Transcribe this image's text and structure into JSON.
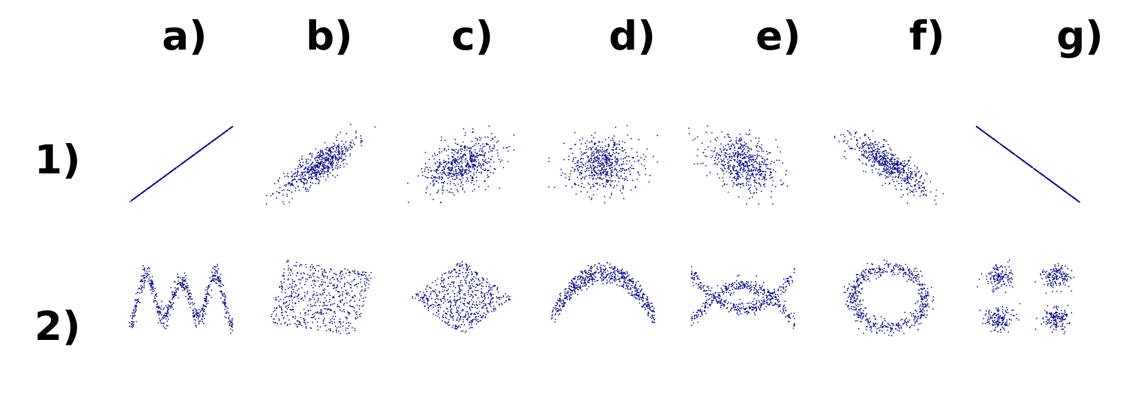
{
  "column_labels": [
    "a)",
    "b)",
    "c)",
    "d)",
    "e)",
    "f)",
    "g)"
  ],
  "row_labels": [
    "1)",
    "2)"
  ],
  "colors": {
    "points": "#000080",
    "text": "#000000",
    "background": "#ffffff"
  },
  "chart_data": {
    "type": "scatter",
    "layout": "small multiples, 2 rows x 7 columns",
    "axes": "none",
    "grid": false,
    "legend": "none",
    "x_range": [
      -1,
      1
    ],
    "y_range": [
      -1,
      1
    ],
    "panels": [
      {
        "column": "a)",
        "row": "1)",
        "pattern": "linear",
        "correlation": 1.0
      },
      {
        "column": "b)",
        "row": "1)",
        "pattern": "linear",
        "correlation": 0.8
      },
      {
        "column": "c)",
        "row": "1)",
        "pattern": "linear",
        "correlation": 0.4
      },
      {
        "column": "d)",
        "row": "1)",
        "pattern": "linear",
        "correlation": 0.0
      },
      {
        "column": "e)",
        "row": "1)",
        "pattern": "linear",
        "correlation": -0.4
      },
      {
        "column": "f)",
        "row": "1)",
        "pattern": "linear",
        "correlation": -0.8
      },
      {
        "column": "g)",
        "row": "1)",
        "pattern": "linear",
        "correlation": -1.0
      },
      {
        "column": "a)",
        "row": "2)",
        "pattern": "w-shape",
        "correlation": 0
      },
      {
        "column": "b)",
        "row": "2)",
        "pattern": "rotated-square",
        "correlation": 0
      },
      {
        "column": "c)",
        "row": "2)",
        "pattern": "diamond",
        "correlation": 0
      },
      {
        "column": "d)",
        "row": "2)",
        "pattern": "parabola",
        "correlation": 0
      },
      {
        "column": "e)",
        "row": "2)",
        "pattern": "x-shape",
        "correlation": 0
      },
      {
        "column": "f)",
        "row": "2)",
        "pattern": "ring",
        "correlation": 0
      },
      {
        "column": "g)",
        "row": "2)",
        "pattern": "four-clusters",
        "correlation": 0
      }
    ]
  }
}
